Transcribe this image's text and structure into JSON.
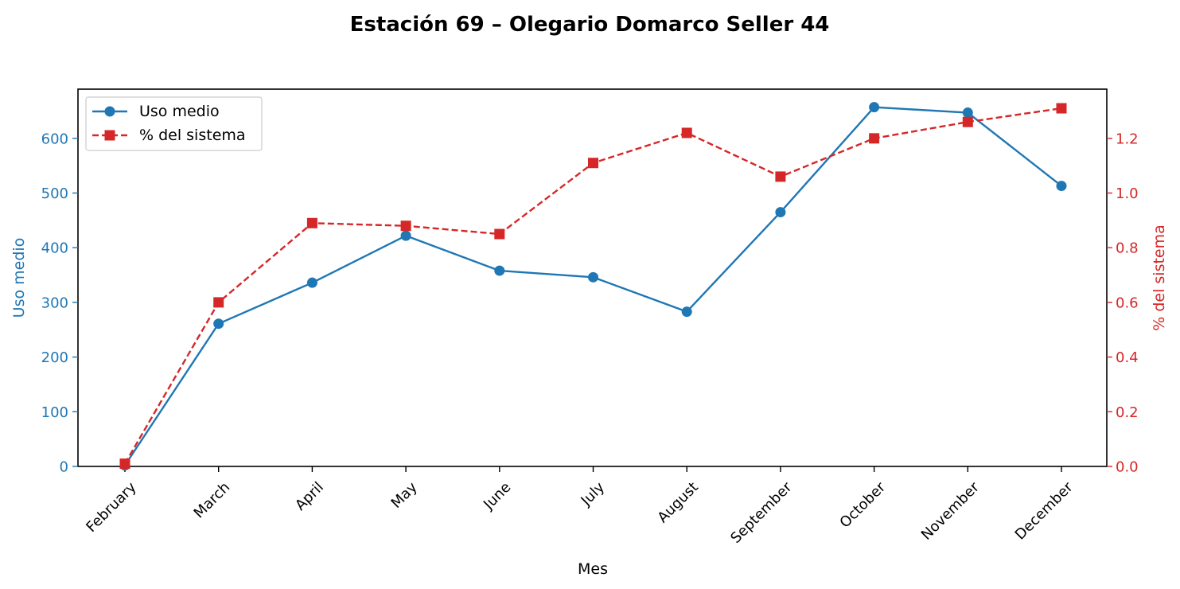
{
  "chart_data": {
    "type": "line",
    "title": "Estación 69 – Olegario Domarco Seller 44",
    "xlabel": "Mes",
    "ylabel_left": "Uso medio",
    "ylabel_right": "% del sistema",
    "categories": [
      "February",
      "March",
      "April",
      "May",
      "June",
      "July",
      "August",
      "September",
      "October",
      "November",
      "December"
    ],
    "series": [
      {
        "name": "Uso medio",
        "axis": "left",
        "color": "#1f77b4",
        "marker": "circle",
        "line_style": "solid",
        "values": [
          2,
          261,
          336,
          422,
          358,
          346,
          283,
          465,
          657,
          647,
          513
        ]
      },
      {
        "name": "% del sistema",
        "axis": "right",
        "color": "#d62728",
        "marker": "square",
        "line_style": "dashed",
        "values": [
          0.01,
          0.6,
          0.89,
          0.88,
          0.85,
          1.11,
          1.22,
          1.06,
          1.2,
          1.26,
          1.31
        ]
      }
    ],
    "ylim_left": [
      0,
      690
    ],
    "ylim_right": [
      0,
      1.38
    ],
    "yticks_left": [
      "0",
      "100",
      "200",
      "300",
      "400",
      "500",
      "600"
    ],
    "yticks_right": [
      "0.0",
      "0.2",
      "0.4",
      "0.6",
      "0.8",
      "1.0",
      "1.2"
    ],
    "yticks_left_values": [
      0,
      100,
      200,
      300,
      400,
      500,
      600
    ],
    "yticks_right_values": [
      0,
      0.2,
      0.4,
      0.6,
      0.8,
      1.0,
      1.2
    ],
    "grid": false,
    "legend_position": "upper-left"
  }
}
